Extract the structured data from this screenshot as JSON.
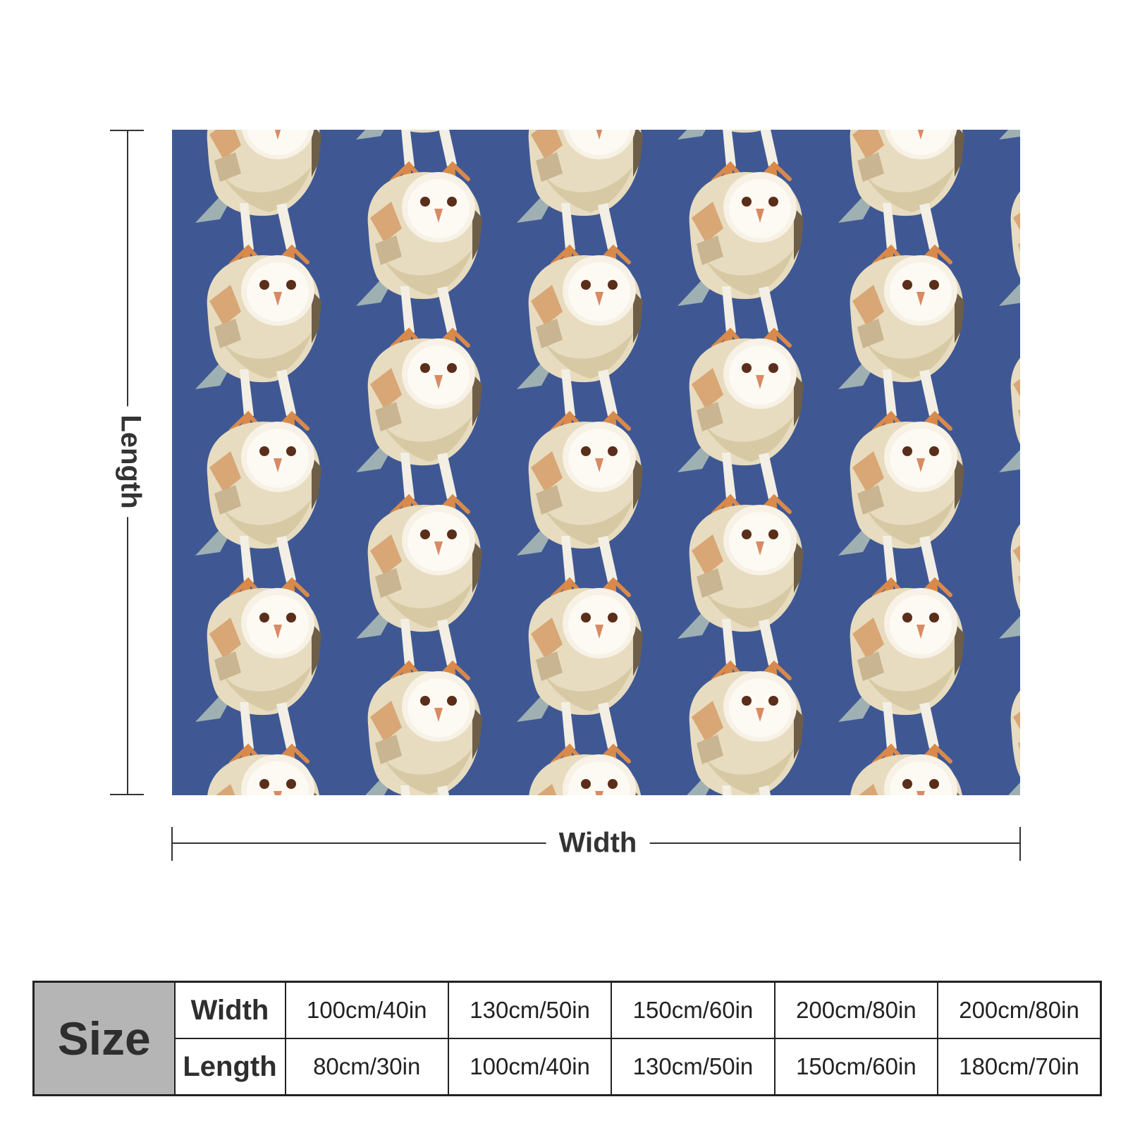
{
  "diagram": {
    "length_label": "Length",
    "width_label": "Width"
  },
  "product": {
    "background_color": "#3f5894",
    "pattern_icon": "barn-owl-icon"
  },
  "size_table": {
    "header": "Size",
    "rows": [
      {
        "label": "Width",
        "values": [
          "100cm/40in",
          "130cm/50in",
          "150cm/60in",
          "200cm/80in",
          "200cm/80in"
        ]
      },
      {
        "label": "Length",
        "values": [
          "80cm/30in",
          "100cm/40in",
          "130cm/50in",
          "150cm/60in",
          "180cm/70in"
        ]
      }
    ]
  }
}
